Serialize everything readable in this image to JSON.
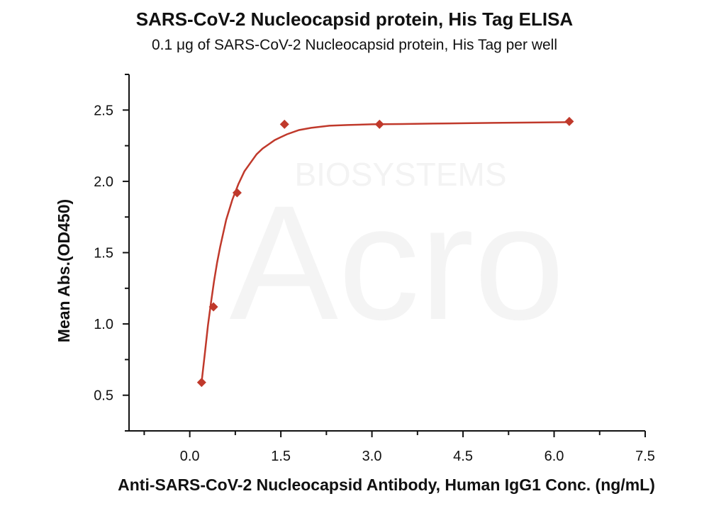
{
  "chart_data": {
    "type": "scatter",
    "title": "SARS-CoV-2 Nucleocapsid protein, His Tag ELISA",
    "subtitle": "0.1 μg of SARS-CoV-2 Nucleocapsid protein, His Tag per well",
    "xlabel": "Anti-SARS-CoV-2 Nucleocapsid Antibody, Human IgG1 Conc. (ng/mL)",
    "ylabel": "Mean Abs.(OD450)",
    "xlim": [
      -1.0,
      7.5
    ],
    "ylim": [
      0.25,
      2.75
    ],
    "x_ticks": [
      0.0,
      1.5,
      3.0,
      4.5,
      6.0,
      7.5
    ],
    "x_tick_labels": [
      "0.0",
      "1.5",
      "3.0",
      "4.5",
      "6.0",
      "7.5"
    ],
    "y_ticks": [
      0.5,
      1.0,
      1.5,
      2.0,
      2.5
    ],
    "y_tick_labels": [
      "0.5",
      "1.0",
      "1.5",
      "2.0",
      "2.5"
    ],
    "series": [
      {
        "marker": "diamond",
        "color": "#c0392b",
        "x": [
          0.195,
          0.39,
          0.78,
          1.56,
          3.125,
          6.25
        ],
        "y": [
          0.59,
          1.12,
          1.92,
          2.4,
          2.4,
          2.42
        ]
      }
    ],
    "fit_curve": {
      "color": "#c0392b",
      "x": [
        0.195,
        0.25,
        0.3,
        0.35,
        0.4,
        0.45,
        0.5,
        0.6,
        0.7,
        0.8,
        0.9,
        1.0,
        1.1,
        1.2,
        1.3,
        1.4,
        1.5,
        1.6,
        1.8,
        2.0,
        2.3,
        2.6,
        3.0,
        3.5,
        4.0,
        5.0,
        6.25
      ],
      "y": [
        0.59,
        0.8,
        0.99,
        1.15,
        1.3,
        1.43,
        1.54,
        1.73,
        1.87,
        1.98,
        2.07,
        2.13,
        2.19,
        2.23,
        2.26,
        2.29,
        2.31,
        2.33,
        2.36,
        2.375,
        2.39,
        2.395,
        2.4,
        2.402,
        2.405,
        2.41,
        2.415
      ]
    },
    "grid": false
  },
  "watermark": {
    "large": "Acro",
    "small": "BIOSYSTEMS"
  }
}
